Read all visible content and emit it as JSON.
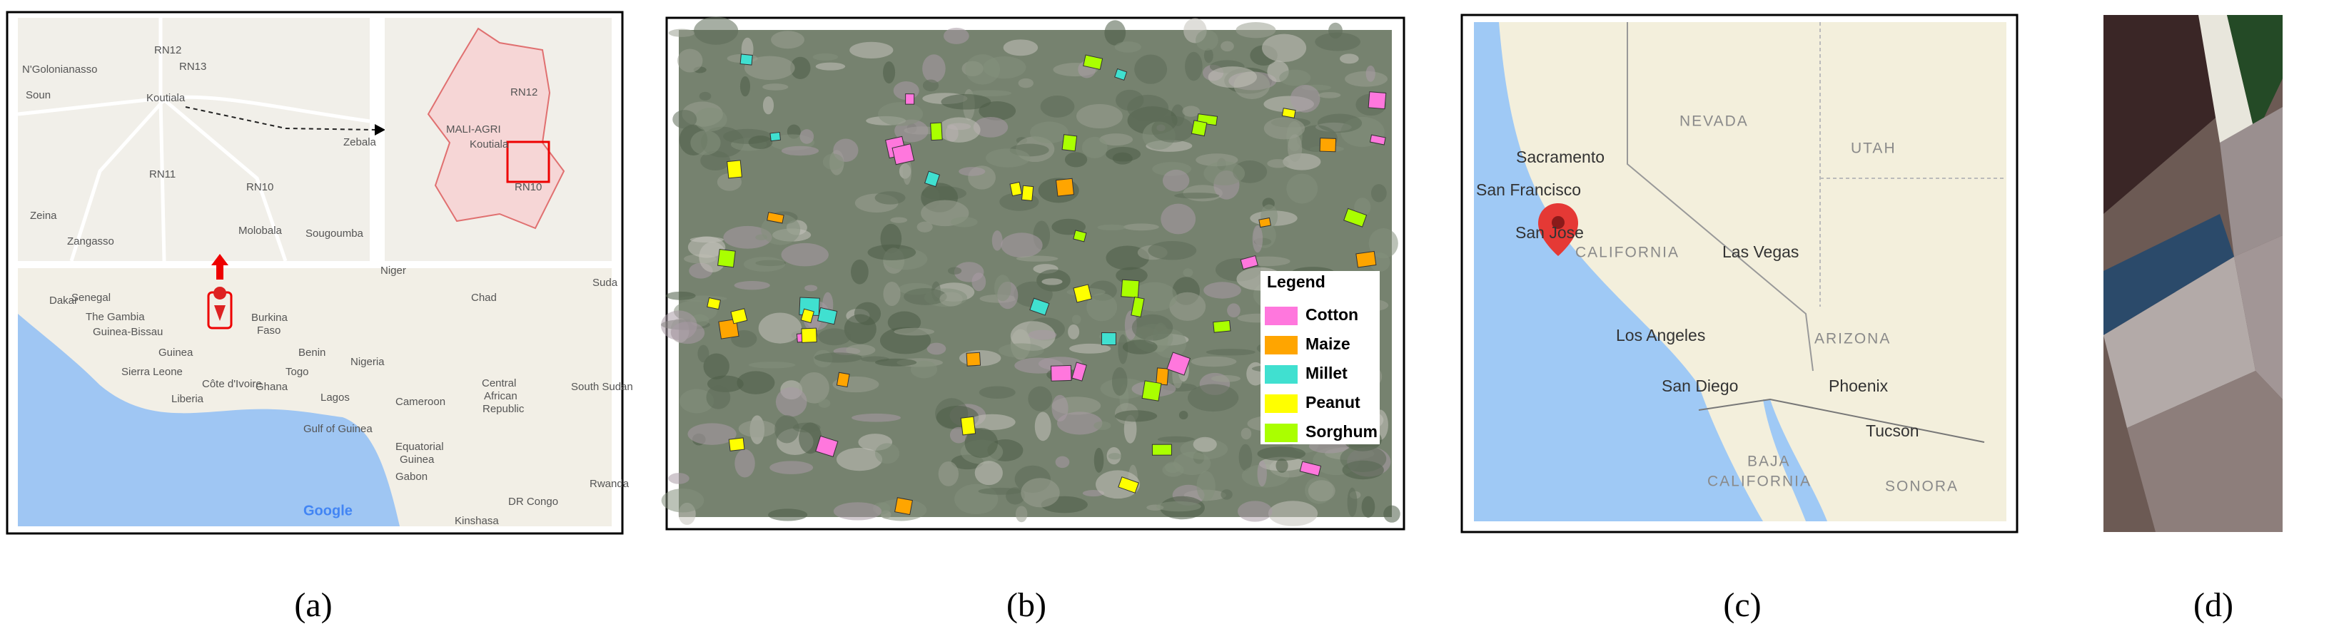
{
  "panel_a": {
    "label": "(a)",
    "top_left_places": [
      "N'Golonianasso",
      "Soun",
      "Koutiala",
      "Zebala",
      "Zeina",
      "Zangasso",
      "Molobala",
      "Sougoumba"
    ],
    "top_left_roads": [
      "RN12",
      "RN13",
      "RN11",
      "RN10"
    ],
    "top_right_places": [
      "MALI-AGRI",
      "Koutiala",
      "RN12",
      "RN10"
    ],
    "bottom_places": [
      "Niger",
      "Suda",
      "Chad",
      "Dakar",
      "Senegal",
      "The Gambia",
      "Guinea-Bissau",
      "Guinea",
      "Burkina",
      "Faso",
      "Benin",
      "Nigeria",
      "Sierra Leone",
      "Liberia",
      "Côte d'Ivoire",
      "Ghana",
      "Togo",
      "Lagos",
      "Cameroon",
      "Central",
      "African",
      "Republic",
      "South Sudan",
      "Gulf of Guinea",
      "Equatorial",
      "Guinea",
      "Gabon",
      "DR Congo",
      "Rwanda",
      "Kinshasa"
    ],
    "attribution": "Google"
  },
  "panel_b": {
    "label": "(b)",
    "legend_title": "Legend",
    "legend": [
      {
        "name": "Cotton",
        "color": "#ff77dd"
      },
      {
        "name": "Maize",
        "color": "#ffa500"
      },
      {
        "name": "Millet",
        "color": "#40e0d0"
      },
      {
        "name": "Peanut",
        "color": "#ffff00"
      },
      {
        "name": "Sorghum",
        "color": "#aaff00"
      }
    ]
  },
  "panel_c": {
    "label": "(c)",
    "places": [
      "NEVADA",
      "UTAH",
      "Sacramento",
      "San Francisco",
      "San Jose",
      "CALIFORNIA",
      "Las Vegas",
      "ARIZONA",
      "Los Angeles",
      "San Diego",
      "Phoenix",
      "Tucson",
      "BAJA",
      "CALIFORNIA",
      "SONORA"
    ]
  },
  "panel_d": {
    "label": "(d)"
  }
}
